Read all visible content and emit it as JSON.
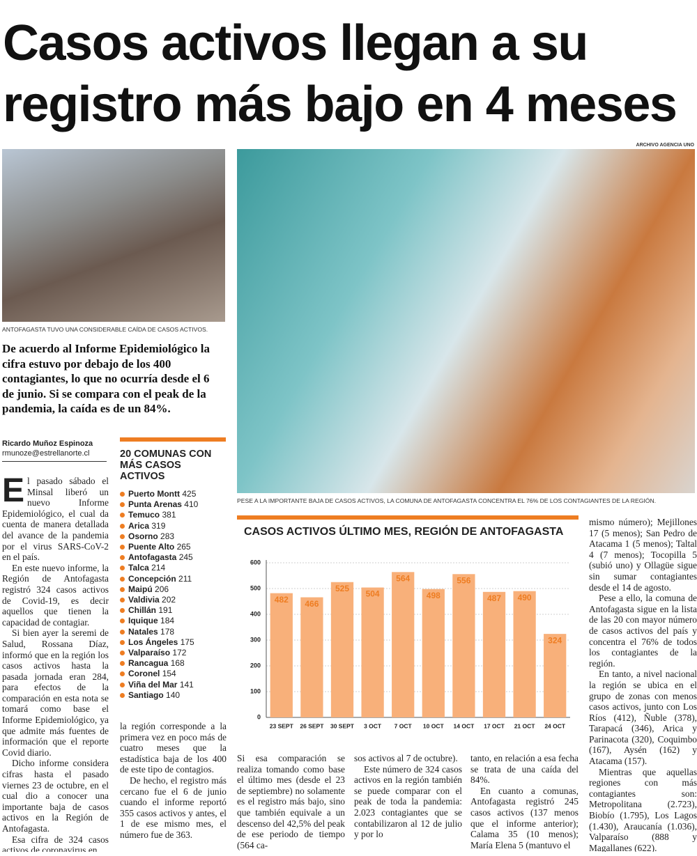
{
  "headline": [
    "Casos activos llegan a su",
    "registro más bajo en 4 meses"
  ],
  "photo_credit": "ARCHIVO AGENCIA UNO",
  "caption_small": "ANTOFAGASTA TUVO UNA CONSIDERABLE CAÍDA DE CASOS ACTIVOS.",
  "caption_main": "PESE A LA IMPORTANTE BAJA DE CASOS ACTIVOS, LA COMUNA DE ANTOFAGASTA CONCENTRA EL 76% DE LOS CONTAGIANTES DE LA REGIÓN.",
  "lead": "De acuerdo al Informe Epidemiológico la cifra estuvo por debajo de los 400 contagiantes, lo que no ocurría desde el 6 de junio. Si se compara con el peak de la pandemia, la caída es de un 84%.",
  "byline": {
    "author": "Ricardo Muñoz Espinoza",
    "email": "rmunoze@estrellanorte.cl"
  },
  "sidebar": {
    "title": "20 COMUNAS CON MÁS CASOS ACTIVOS",
    "items": [
      {
        "name": "Puerto Montt",
        "value": 425
      },
      {
        "name": "Punta Arenas",
        "value": 410
      },
      {
        "name": "Temuco",
        "value": 381
      },
      {
        "name": "Arica",
        "value": 319
      },
      {
        "name": "Osorno",
        "value": 283
      },
      {
        "name": "Puente Alto",
        "value": 265
      },
      {
        "name": "Antofagasta",
        "value": 245
      },
      {
        "name": "Talca",
        "value": 214
      },
      {
        "name": "Concepción",
        "value": 211
      },
      {
        "name": "Maipú",
        "value": 206
      },
      {
        "name": "Valdivia",
        "value": 202
      },
      {
        "name": "Chillán",
        "value": 191
      },
      {
        "name": "Iquique",
        "value": 184
      },
      {
        "name": "Natales",
        "value": 178
      },
      {
        "name": "Los Ángeles",
        "value": 175
      },
      {
        "name": "Valparaíso",
        "value": 172
      },
      {
        "name": "Rancagua",
        "value": 168
      },
      {
        "name": "Coronel",
        "value": 154
      },
      {
        "name": "Viña del Mar",
        "value": 141
      },
      {
        "name": "Santiago",
        "value": 140
      }
    ]
  },
  "columns": [
    [
      "El pasado sábado el Minsal liberó un nuevo Informe Epidemiológico, el cual da cuenta de manera detallada del avance de la pandemia por el virus SARS-CoV-2 en el país.",
      "En este nuevo informe, la Región de Antofagasta registró 324 casos activos de Covid-19, es decir aquellos que tienen la capacidad de contagiar.",
      "Si bien ayer la seremi de Salud, Rossana Díaz, informó que en la región los casos activos hasta la pasada jornada eran 284, para efectos de la comparación en esta nota se tomará como base el Informe Epidemiológico, ya que admite más fuentes de información que el reporte Covid diario.",
      "Dicho informe considera cifras hasta el pasado viernes 23 de octubre, en el cual dio a conocer una importante baja de casos activos en la Región de Antofagasta.",
      "Esa cifra de 324 casos activos de coronavirus en"
    ],
    [
      "la región corresponde a la primera vez en poco más de cuatro meses que la estadística baja de los 400 de este tipo de contagios.",
      "De hecho, el registro más cercano fue el 6 de junio cuando el informe reportó 355 casos activos y antes, el 1 de ese mismo mes, el número fue de 363."
    ],
    [
      "Si esa comparación se realiza tomando como base el último mes (desde el 23 de septiembre) no solamente es el registro más bajo, sino que también equivale a un descenso del 42,5% del peak de ese periodo de tiempo (564 ca-"
    ],
    [
      "sos activos al 7 de octubre).",
      "Este número de 324 casos activos en la región también se puede comparar con el peak de toda la pandemia: 2.023 contagiantes que se contabilizaron al 12 de julio y por lo"
    ],
    [
      "tanto, en relación a esa fecha se trata de una caída del 84%.",
      "En cuanto a comunas, Antofagasta registró 245 casos activos (137 menos que el informe anterior); Calama 35 (10 menos); María Elena 5 (mantuvo el"
    ],
    [
      "mismo número); Mejillones 17 (5 menos); San Pedro de Atacama 1 (5 menos); Taltal 4 (7 menos); Tocopilla 5 (subió uno) y Ollagüe sigue sin sumar contagiantes desde el 14 de agosto.",
      "Pese a ello, la comuna de Antofagasta sigue en la lista de las 20 con mayor número de casos activos del país y concentra el 76% de todos los contagiantes de la región.",
      "En tanto, a nivel nacional la región se ubica en el grupo de zonas con menos casos activos, junto con Los Ríos (412), Ñuble (378), Tarapacá (346), Arica y Parinacota (320), Coquimbo (167), Aysén (162) y Atacama (157).",
      "Mientras que aquellas regiones con más contagiantes son: Metropolitana (2.723), Biobío (1.795), Los Lagos (1.430), Araucanía (1.036), Valparaíso (888 y Magallanes (622)."
    ]
  ],
  "chart_data": {
    "type": "bar",
    "title": "CASOS ACTIVOS ÚLTIMO MES, REGIÓN DE ANTOFAGASTA",
    "categories": [
      "23 SEPT",
      "26 SEPT",
      "30 SEPT",
      "3 OCT",
      "7 OCT",
      "10 OCT",
      "14 OCT",
      "17 OCT",
      "21 OCT",
      "24 OCT"
    ],
    "values": [
      482,
      466,
      525,
      504,
      564,
      498,
      556,
      487,
      490,
      324
    ],
    "color": "#f8b07a",
    "label_color": "#ee7d22",
    "ylim": [
      0,
      600
    ],
    "yticks": [
      0,
      100,
      200,
      300,
      400,
      500,
      600
    ],
    "grid": true
  }
}
